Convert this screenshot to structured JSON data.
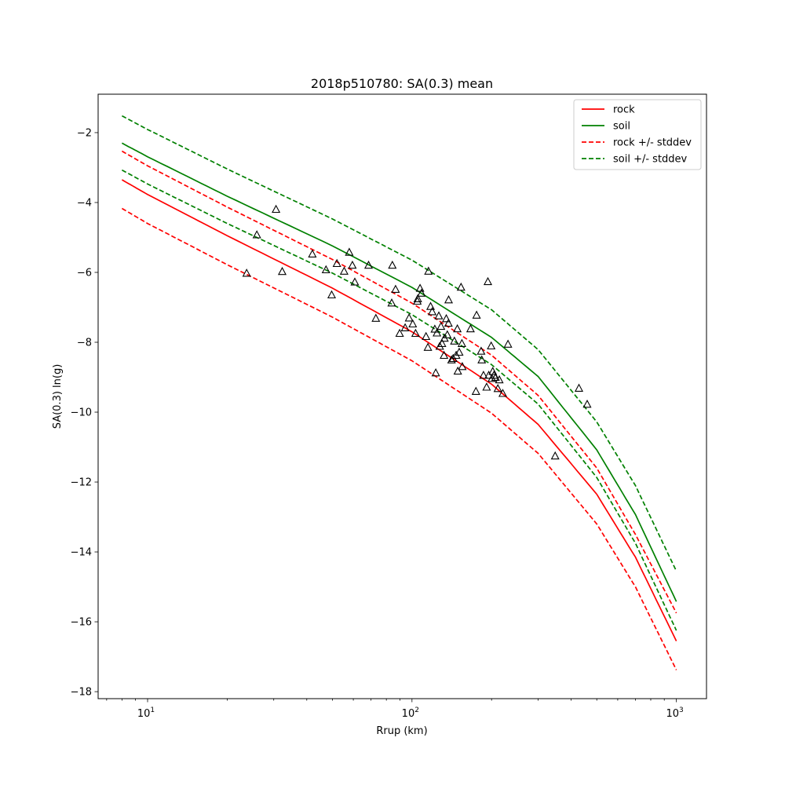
{
  "chart_data": {
    "type": "line",
    "title": "2018p510780: SA(0.3) mean",
    "xlabel": "Rrup (km)",
    "ylabel": "SA(0.3) ln(g)",
    "xscale": "log",
    "xlim": [
      6.5,
      1300
    ],
    "ylim": [
      -18.2,
      -0.9
    ],
    "xticks": [
      {
        "value": 10,
        "base": "10",
        "exp": "1"
      },
      {
        "value": 100,
        "base": "10",
        "exp": "2"
      },
      {
        "value": 1000,
        "base": "10",
        "exp": "3"
      }
    ],
    "yticks": [
      -18,
      -16,
      -14,
      -12,
      -10,
      -8,
      -6,
      -4,
      -2
    ],
    "ytick_labels": [
      "−18",
      "−16",
      "−14",
      "−12",
      "−10",
      "−8",
      "−6",
      "−4",
      "−2"
    ],
    "grid": false,
    "legend_position": "upper right",
    "legend": [
      {
        "label": "rock",
        "color": "#ff0000",
        "style": "solid"
      },
      {
        "label": "soil",
        "color": "#008000",
        "style": "solid"
      },
      {
        "label": "rock +/- stddev",
        "color": "#ff0000",
        "style": "dashed"
      },
      {
        "label": "soil +/- stddev",
        "color": "#008000",
        "style": "dashed"
      }
    ],
    "series": [
      {
        "key": "rock",
        "color": "#ff0000",
        "style": "solid",
        "x": [
          8,
          10,
          20,
          50,
          100,
          200,
          300,
          500,
          700,
          1000
        ],
        "y": [
          -3.35,
          -3.77,
          -4.95,
          -6.45,
          -7.7,
          -9.2,
          -10.35,
          -12.35,
          -14.15,
          -16.55
        ]
      },
      {
        "key": "soil",
        "color": "#008000",
        "style": "solid",
        "x": [
          8,
          10,
          20,
          50,
          100,
          200,
          300,
          500,
          700,
          1000
        ],
        "y": [
          -2.3,
          -2.69,
          -3.82,
          -5.24,
          -6.43,
          -7.86,
          -8.98,
          -11.08,
          -12.93,
          -15.42
        ]
      },
      {
        "key": "rock-plus",
        "color": "#ff0000",
        "style": "dashed",
        "x": [
          8,
          10,
          20,
          50,
          100,
          200,
          300,
          500,
          700,
          1000
        ],
        "y": [
          -2.53,
          -2.95,
          -4.13,
          -5.63,
          -6.88,
          -8.37,
          -9.52,
          -11.6,
          -13.5,
          -15.75
        ]
      },
      {
        "key": "rock-minus",
        "color": "#ff0000",
        "style": "dashed",
        "x": [
          8,
          10,
          20,
          50,
          100,
          200,
          300,
          500,
          700,
          1000
        ],
        "y": [
          -4.17,
          -4.6,
          -5.78,
          -7.28,
          -8.53,
          -10.03,
          -11.18,
          -13.2,
          -15.0,
          -17.38
        ]
      },
      {
        "key": "soil-plus",
        "color": "#008000",
        "style": "dashed",
        "x": [
          8,
          10,
          20,
          50,
          100,
          200,
          300,
          500,
          700,
          1000
        ],
        "y": [
          -1.52,
          -1.91,
          -3.04,
          -4.47,
          -5.65,
          -7.07,
          -8.21,
          -10.28,
          -12.1,
          -14.55
        ]
      },
      {
        "key": "soil-minus",
        "color": "#008000",
        "style": "dashed",
        "x": [
          8,
          10,
          20,
          50,
          100,
          200,
          300,
          500,
          700,
          1000
        ],
        "y": [
          -3.07,
          -3.47,
          -4.6,
          -6.02,
          -7.21,
          -8.64,
          -9.77,
          -11.87,
          -13.75,
          -16.25
        ]
      }
    ],
    "observations": {
      "marker": "triangle",
      "edge_color": "#000000",
      "fill": "none",
      "points": [
        [
          23.7,
          -6.03
        ],
        [
          25.9,
          -4.93
        ],
        [
          30.6,
          -4.2
        ],
        [
          32.3,
          -5.98
        ],
        [
          42.0,
          -5.48
        ],
        [
          47.3,
          -5.93
        ],
        [
          49.7,
          -6.65
        ],
        [
          52.0,
          -5.75
        ],
        [
          55.4,
          -5.97
        ],
        [
          57.9,
          -5.43
        ],
        [
          59.5,
          -5.8
        ],
        [
          60.8,
          -6.28
        ],
        [
          68.5,
          -5.8
        ],
        [
          73.0,
          -7.32
        ],
        [
          83.8,
          -6.88
        ],
        [
          84.3,
          -5.8
        ],
        [
          86.7,
          -6.49
        ],
        [
          89.8,
          -7.75
        ],
        [
          94.2,
          -7.59
        ],
        [
          97.5,
          -7.31
        ],
        [
          100.7,
          -7.48
        ],
        [
          103.2,
          -7.75
        ],
        [
          104.8,
          -6.83
        ],
        [
          105.2,
          -6.76
        ],
        [
          107.3,
          -6.46
        ],
        [
          108.6,
          -6.6
        ],
        [
          113.0,
          -7.84
        ],
        [
          114.9,
          -8.15
        ],
        [
          115.4,
          -5.97
        ],
        [
          117.6,
          -6.98
        ],
        [
          119.3,
          -7.13
        ],
        [
          122.0,
          -7.63
        ],
        [
          123.0,
          -8.88
        ],
        [
          124.3,
          -7.74
        ],
        [
          126.3,
          -7.25
        ],
        [
          127.4,
          -8.12
        ],
        [
          128.8,
          -7.55
        ],
        [
          129.9,
          -8.04
        ],
        [
          132.2,
          -8.38
        ],
        [
          132.7,
          -7.89
        ],
        [
          134.8,
          -7.33
        ],
        [
          136.0,
          -7.79
        ],
        [
          137.4,
          -7.46
        ],
        [
          137.6,
          -6.79
        ],
        [
          141.1,
          -8.51
        ],
        [
          143.2,
          -8.47
        ],
        [
          144.6,
          -7.97
        ],
        [
          146.9,
          -8.38
        ],
        [
          148.4,
          -7.62
        ],
        [
          149.1,
          -8.83
        ],
        [
          150.9,
          -8.29
        ],
        [
          153.3,
          -6.43
        ],
        [
          154.4,
          -8.04
        ],
        [
          155.0,
          -8.7
        ],
        [
          166.5,
          -7.62
        ],
        [
          174.5,
          -9.41
        ],
        [
          175.5,
          -7.23
        ],
        [
          182.6,
          -8.26
        ],
        [
          183.6,
          -8.51
        ],
        [
          186.4,
          -8.95
        ],
        [
          191.5,
          -9.29
        ],
        [
          193.7,
          -6.27
        ],
        [
          195.1,
          -8.95
        ],
        [
          199.3,
          -8.11
        ],
        [
          200.6,
          -9.04
        ],
        [
          202.0,
          -8.84
        ],
        [
          204.1,
          -8.95
        ],
        [
          207.1,
          -9.01
        ],
        [
          211.3,
          -9.33
        ],
        [
          214.0,
          -9.08
        ],
        [
          220.5,
          -9.47
        ],
        [
          230.7,
          -8.06
        ],
        [
          348.0,
          -11.26
        ],
        [
          428.0,
          -9.32
        ],
        [
          460.0,
          -9.78
        ]
      ]
    }
  }
}
